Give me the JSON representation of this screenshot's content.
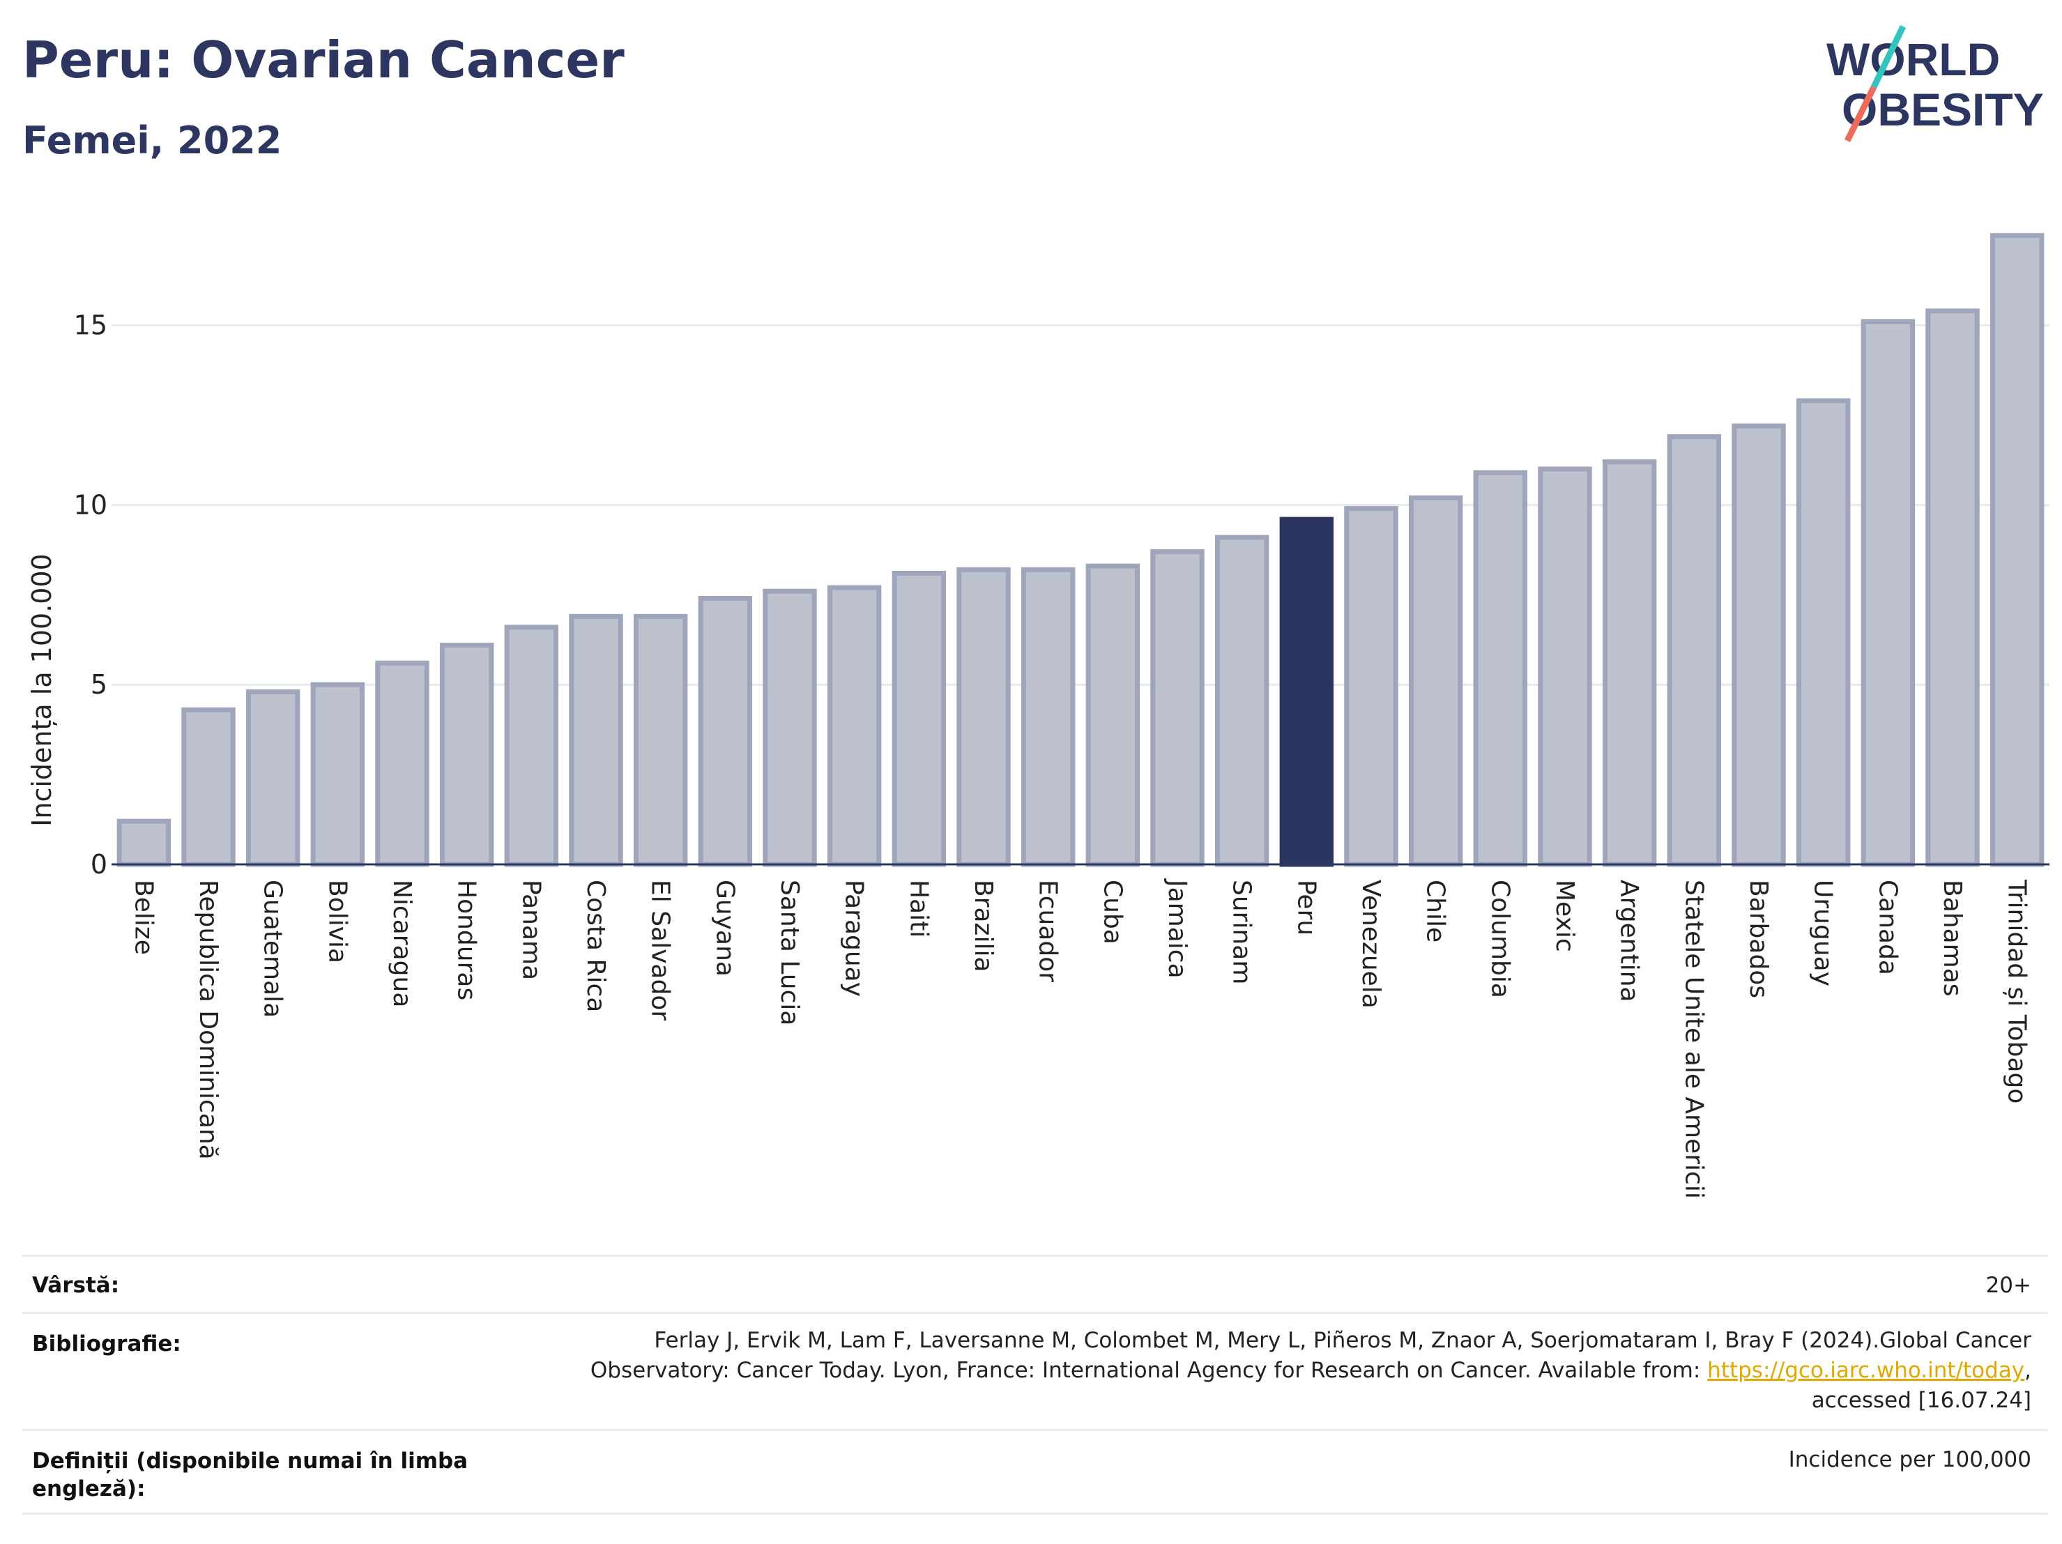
{
  "header": {
    "title": "Peru: Ovarian Cancer",
    "subtitle": "Femei, 2022"
  },
  "logo": {
    "line1": "WORLD",
    "line2": "OBESITY",
    "accent_colors": [
      "#33c4c0",
      "#ee6a5a"
    ]
  },
  "colors": {
    "highlight": "#2a3560",
    "bar_fill": "#bec2cf",
    "bar_stroke": "#9fa5ba",
    "text_dark": "#2d3660"
  },
  "chart_data": {
    "type": "bar",
    "ylabel": "Incidența la 100.000",
    "xlabel": "",
    "ylim": [
      0,
      18
    ],
    "yticks": [
      0,
      5,
      10,
      15
    ],
    "grid": true,
    "highlight": "Peru",
    "categories": [
      "Belize",
      "Republica Dominicană",
      "Guatemala",
      "Bolivia",
      "Nicaragua",
      "Honduras",
      "Panama",
      "Costa Rica",
      "El Salvador",
      "Guyana",
      "Santa Lucia",
      "Paraguay",
      "Haiti",
      "Brazilia",
      "Ecuador",
      "Cuba",
      "Jamaica",
      "Surinam",
      "Peru",
      "Venezuela",
      "Chile",
      "Columbia",
      "Mexic",
      "Argentina",
      "Statele Unite ale Americii",
      "Barbados",
      "Uruguay",
      "Canada",
      "Bahamas",
      "Trinidad și Tobago"
    ],
    "values": [
      1.2,
      4.3,
      4.8,
      5.0,
      5.6,
      6.1,
      6.6,
      6.9,
      6.9,
      7.4,
      7.6,
      7.7,
      8.1,
      8.2,
      8.2,
      8.3,
      8.7,
      9.1,
      9.6,
      9.9,
      10.2,
      10.9,
      11.0,
      11.2,
      11.9,
      12.2,
      12.9,
      15.1,
      15.4,
      17.5
    ]
  },
  "meta": {
    "age_label": "Vârstă:",
    "age_value": "20+",
    "biblio_label": "Bibliografie:",
    "biblio_text": "Ferlay J, Ervik M, Lam F, Laversanne M, Colombet M, Mery L, Piñeros M, Znaor A, Soerjomataram I, Bray F (2024).Global Cancer Observatory: Cancer Today. Lyon, France: International Agency for Research on Cancer. Available from: ",
    "biblio_link": "https://gco.iarc.who.int/today",
    "biblio_suffix": ", accessed [16.07.24]",
    "def_label": "Definiții (disponibile numai în limba engleză):",
    "def_value": "Incidence per 100,000"
  }
}
